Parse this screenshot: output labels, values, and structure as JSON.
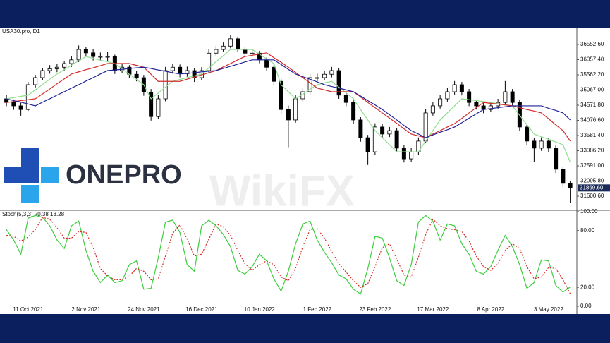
{
  "logo": {
    "text": "ONEPRO"
  },
  "watermark": "WikiFX",
  "chart_data": [
    {
      "type": "candlestick",
      "title": "USA30.pro, D1",
      "categories": [
        null,
        null,
        null,
        "11 Oct 2021",
        null,
        null,
        null,
        null,
        null,
        null,
        null,
        "2 Nov 2021",
        null,
        null,
        null,
        null,
        null,
        null,
        null,
        "24 Nov 2021",
        null,
        null,
        null,
        null,
        null,
        null,
        null,
        "16 Dec 2021",
        null,
        null,
        null,
        null,
        null,
        null,
        null,
        "10 Jan 2022",
        null,
        null,
        null,
        null,
        null,
        null,
        null,
        "1 Feb 2022",
        null,
        null,
        null,
        null,
        null,
        null,
        null,
        "23 Feb 2022",
        null,
        null,
        null,
        null,
        null,
        null,
        null,
        "17 Mar 2022",
        null,
        null,
        null,
        null,
        null,
        null,
        null,
        "8 Apr 2022",
        null,
        null,
        null,
        null,
        null,
        null,
        null,
        "3 May 2022",
        null,
        null,
        null
      ],
      "ohlc": [
        [
          34780,
          34900,
          34540,
          34660
        ],
        [
          34660,
          34760,
          34420,
          34550
        ],
        [
          34550,
          34650,
          34230,
          34430
        ],
        [
          34430,
          35330,
          34380,
          35240
        ],
        [
          35240,
          35560,
          35150,
          35470
        ],
        [
          35470,
          35790,
          35380,
          35700
        ],
        [
          35700,
          35880,
          35600,
          35760
        ],
        [
          35760,
          35930,
          35650,
          35810
        ],
        [
          35810,
          36020,
          35700,
          35930
        ],
        [
          35930,
          36160,
          35820,
          36050
        ],
        [
          36050,
          36520,
          35980,
          36390
        ],
        [
          36390,
          36480,
          36150,
          36280
        ],
        [
          36280,
          36400,
          36030,
          36160
        ],
        [
          36160,
          36290,
          36020,
          36160
        ],
        [
          36160,
          36300,
          35990,
          36160
        ],
        [
          36160,
          36220,
          35590,
          35700
        ],
        [
          35700,
          35930,
          35620,
          35810
        ],
        [
          35810,
          35880,
          35460,
          35580
        ],
        [
          35580,
          35690,
          35350,
          35470
        ],
        [
          35470,
          35560,
          34880,
          35000
        ],
        [
          35000,
          35100,
          34070,
          34200
        ],
        [
          34200,
          34900,
          34130,
          34780
        ],
        [
          34780,
          35820,
          34700,
          35700
        ],
        [
          35700,
          35930,
          35600,
          35810
        ],
        [
          35810,
          35900,
          35480,
          35600
        ],
        [
          35600,
          35830,
          35500,
          35700
        ],
        [
          35700,
          35790,
          35330,
          35470
        ],
        [
          35470,
          35810,
          35400,
          35700
        ],
        [
          35700,
          36390,
          35640,
          36270
        ],
        [
          36270,
          36510,
          36180,
          36390
        ],
        [
          36390,
          36620,
          36300,
          36500
        ],
        [
          36500,
          36860,
          36430,
          36740
        ],
        [
          36740,
          36810,
          36300,
          36400
        ],
        [
          36400,
          36480,
          36170,
          36270
        ],
        [
          36270,
          36390,
          36150,
          36270
        ],
        [
          36270,
          36350,
          35940,
          36050
        ],
        [
          36050,
          36130,
          35690,
          35810
        ],
        [
          35810,
          35900,
          35230,
          35350
        ],
        [
          35350,
          35440,
          34300,
          34430
        ],
        [
          34430,
          34560,
          33200,
          34090
        ],
        [
          34090,
          34900,
          34000,
          34780
        ],
        [
          34780,
          35130,
          34690,
          35010
        ],
        [
          35010,
          35590,
          34920,
          35470
        ],
        [
          35470,
          35600,
          35350,
          35470
        ],
        [
          35470,
          35690,
          35380,
          35580
        ],
        [
          35580,
          35820,
          35480,
          35700
        ],
        [
          35700,
          35780,
          34780,
          34900
        ],
        [
          34900,
          35000,
          34540,
          34660
        ],
        [
          34660,
          34750,
          33970,
          34090
        ],
        [
          34090,
          34180,
          33380,
          33510
        ],
        [
          33510,
          33600,
          32620,
          33050
        ],
        [
          33050,
          33980,
          32960,
          33860
        ],
        [
          33860,
          33950,
          33500,
          33630
        ],
        [
          33630,
          33860,
          33530,
          33740
        ],
        [
          33740,
          33820,
          33040,
          33170
        ],
        [
          33170,
          33260,
          32700,
          32820
        ],
        [
          32820,
          33170,
          32730,
          33050
        ],
        [
          33050,
          33520,
          32960,
          33400
        ],
        [
          33400,
          34440,
          33330,
          34320
        ],
        [
          34320,
          34670,
          34230,
          34550
        ],
        [
          34550,
          34900,
          34460,
          34780
        ],
        [
          34780,
          35130,
          34690,
          35010
        ],
        [
          35010,
          35360,
          34920,
          35240
        ],
        [
          35240,
          35330,
          34890,
          35010
        ],
        [
          35010,
          35100,
          34540,
          34660
        ],
        [
          34660,
          34750,
          34430,
          34550
        ],
        [
          34550,
          34640,
          34310,
          34430
        ],
        [
          34430,
          34670,
          34340,
          34550
        ],
        [
          34550,
          34780,
          34460,
          34660
        ],
        [
          34660,
          35360,
          34570,
          35010
        ],
        [
          35010,
          35100,
          34540,
          34660
        ],
        [
          34660,
          34750,
          33740,
          33860
        ],
        [
          33860,
          33950,
          33280,
          33400
        ],
        [
          33400,
          33490,
          32710,
          33170
        ],
        [
          33170,
          33520,
          33080,
          33400
        ],
        [
          33400,
          33490,
          33050,
          33170
        ],
        [
          33170,
          33260,
          32360,
          32480
        ],
        [
          32480,
          32570,
          31900,
          32020
        ],
        [
          32020,
          32100,
          31390,
          31869.6
        ]
      ],
      "series": [
        {
          "color": "#8fdc8f",
          "values": [
            34780,
            34820,
            34860,
            34900,
            35070,
            35250,
            35420,
            35590,
            35730,
            35880,
            36020,
            36160,
            36100,
            36040,
            35990,
            35930,
            35760,
            35580,
            35410,
            35240,
            34780,
            34970,
            35160,
            35350,
            35410,
            35470,
            35530,
            35590,
            35790,
            35990,
            36190,
            36390,
            36390,
            36390,
            36390,
            36240,
            36080,
            35930,
            35240,
            35010,
            34780,
            34930,
            35090,
            35240,
            35300,
            35350,
            35160,
            34970,
            34780,
            34430,
            34090,
            33740,
            33510,
            33280,
            33050,
            33050,
            33050,
            33050,
            33400,
            33740,
            34090,
            34320,
            34550,
            34780,
            34750,
            34720,
            34690,
            34660,
            34620,
            34590,
            34550,
            34240,
            33940,
            33630,
            33540,
            33460,
            33370,
            33280,
            32710
          ]
        },
        {
          "color": "#d42a2a",
          "values": [
            34660,
            34690,
            34720,
            34750,
            34780,
            34940,
            35100,
            35270,
            35430,
            35590,
            35660,
            35730,
            35790,
            35860,
            35930,
            35930,
            35930,
            35930,
            35870,
            35810,
            35580,
            35350,
            35350,
            35350,
            35350,
            35420,
            35490,
            35560,
            35630,
            35700,
            35820,
            35930,
            36050,
            36160,
            36200,
            36240,
            36280,
            36120,
            35970,
            35810,
            35640,
            35470,
            35300,
            35130,
            35070,
            35010,
            35010,
            35010,
            35010,
            34840,
            34660,
            34490,
            34320,
            34150,
            33980,
            33800,
            33630,
            33570,
            33510,
            33630,
            33740,
            33860,
            33970,
            34140,
            34320,
            34490,
            34660,
            34630,
            34610,
            34580,
            34550,
            34490,
            34430,
            34380,
            34320,
            34130,
            33930,
            33740,
            33400
          ]
        },
        {
          "color": "#23239a",
          "values": [
            34780,
            34720,
            34670,
            34610,
            34550,
            34670,
            34780,
            34900,
            35010,
            35130,
            35240,
            35360,
            35470,
            35590,
            35700,
            35720,
            35740,
            35770,
            35790,
            35810,
            35770,
            35720,
            35680,
            35630,
            35590,
            35610,
            35630,
            35660,
            35680,
            35700,
            35770,
            35840,
            35910,
            35980,
            36050,
            36050,
            36050,
            36050,
            35900,
            35740,
            35590,
            35500,
            35420,
            35330,
            35240,
            35180,
            35130,
            35070,
            35010,
            34870,
            34720,
            34580,
            34430,
            34260,
            34090,
            33910,
            33740,
            33630,
            33510,
            33600,
            33690,
            33770,
            33860,
            34000,
            34150,
            34290,
            34430,
            34460,
            34490,
            34520,
            34550,
            34550,
            34550,
            34550,
            34550,
            34470,
            34400,
            34320,
            34090
          ]
        }
      ],
      "current_price": {
        "value": 31869.6,
        "label": "31869.60"
      },
      "ylim": [
        31163.6,
        37082.3
      ],
      "yticks": [
        {
          "value": 36552.6,
          "label": "36552.60"
        },
        {
          "value": 36057.4,
          "label": "36057.40"
        },
        {
          "value": 35562.2,
          "label": "35562.20"
        },
        {
          "value": 35067,
          "label": "35067.00"
        },
        {
          "value": 34571.8,
          "label": "34571.80"
        },
        {
          "value": 34076.6,
          "label": "34076.60"
        },
        {
          "value": 33581.4,
          "label": "33581.40"
        },
        {
          "value": 33086.2,
          "label": "33086.20"
        },
        {
          "value": 32591,
          "label": "32591.00"
        },
        {
          "value": 32095.8,
          "label": "32095.80"
        },
        {
          "value": 31600.6,
          "label": "31600.60"
        }
      ]
    },
    {
      "type": "line",
      "title": "Stoch(5,3,3) 20.38 13.28",
      "series": [
        {
          "color": "#3ccc3c",
          "values": [
            81,
            70,
            55,
            93,
            96,
            94,
            85,
            70,
            61,
            85,
            90,
            59,
            37,
            25,
            33,
            25,
            27,
            44,
            48,
            18,
            19,
            51,
            89,
            91,
            78,
            44,
            37,
            85,
            91,
            85,
            76,
            63,
            38,
            34,
            42,
            55,
            48,
            29,
            16,
            37,
            66,
            87,
            90,
            70,
            57,
            46,
            33,
            29,
            18,
            13,
            40,
            74,
            72,
            51,
            27,
            22,
            44,
            89,
            96,
            90,
            70,
            87,
            85,
            66,
            55,
            37,
            34,
            42,
            59,
            75,
            63,
            44,
            19,
            25,
            49,
            48,
            22,
            15,
            20.38
          ]
        },
        {
          "color": "#d42a2a",
          "dashed": true,
          "values": [
            75,
            74,
            69,
            73,
            81,
            94,
            92,
            83,
            72,
            72,
            79,
            78,
            62,
            40,
            32,
            28,
            28,
            32,
            40,
            37,
            28,
            29,
            53,
            77,
            86,
            71,
            53,
            55,
            71,
            87,
            84,
            75,
            59,
            45,
            38,
            44,
            48,
            44,
            31,
            27,
            40,
            63,
            81,
            82,
            72,
            58,
            45,
            36,
            27,
            20,
            24,
            42,
            62,
            66,
            50,
            33,
            31,
            52,
            76,
            92,
            85,
            82,
            81,
            79,
            69,
            53,
            42,
            38,
            45,
            59,
            66,
            61,
            42,
            29,
            31,
            41,
            40,
            28,
            13.28
          ]
        }
      ],
      "ylim": [
        -4.5,
        100.7
      ],
      "yticks": [
        {
          "value": 100,
          "label": "100.00"
        },
        {
          "value": 80,
          "label": "80.00"
        },
        {
          "value": 20,
          "label": "20.00"
        },
        {
          "value": 0,
          "label": "0.00"
        }
      ]
    }
  ]
}
